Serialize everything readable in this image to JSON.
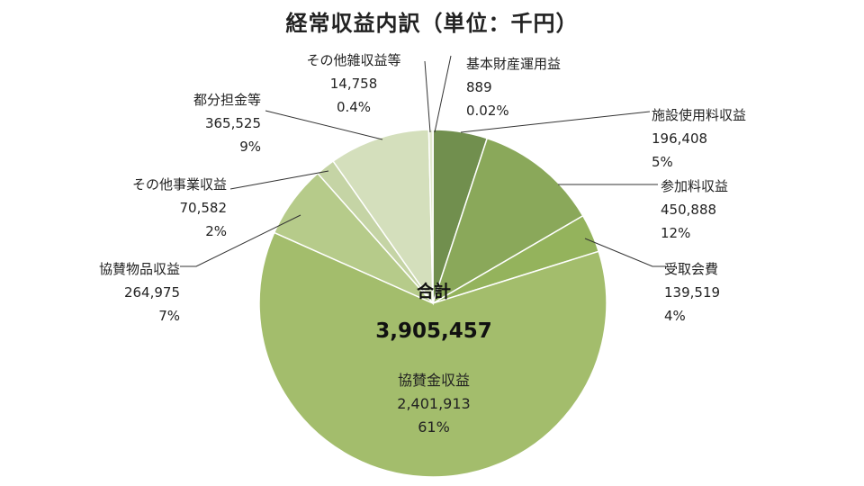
{
  "chart_data": {
    "type": "pie",
    "title": "経常収益内訳（単位：千円）",
    "total": {
      "label": "合計",
      "value": "3,905,457"
    },
    "slices": [
      {
        "name": "基本財産運用益",
        "value": 889,
        "value_text": "889",
        "pct": "0.02%",
        "color": "#8da563"
      },
      {
        "name": "施設使用料収益",
        "value": 196408,
        "value_text": "196,408",
        "pct": "5%",
        "color": "#718f4e"
      },
      {
        "name": "参加料収益",
        "value": 450888,
        "value_text": "450,888",
        "pct": "12%",
        "color": "#8aa85a"
      },
      {
        "name": "受取会費",
        "value": 139519,
        "value_text": "139,519",
        "pct": "4%",
        "color": "#94b35c"
      },
      {
        "name": "協賛金収益",
        "value": 2401913,
        "value_text": "2,401,913",
        "pct": "61%",
        "color": "#a3bd6c"
      },
      {
        "name": "協賛物品収益",
        "value": 264975,
        "value_text": "264,975",
        "pct": "7%",
        "color": "#b6cb8a"
      },
      {
        "name": "その他事業収益",
        "value": 70582,
        "value_text": "70,582",
        "pct": "2%",
        "color": "#c5d4a5"
      },
      {
        "name": "都分担金等",
        "value": 365525,
        "value_text": "365,525",
        "pct": "9%",
        "color": "#d4dfbc"
      },
      {
        "name": "その他雑収益等",
        "value": 14758,
        "value_text": "14,758",
        "pct": "0.4%",
        "color": "#e3eacf"
      }
    ]
  }
}
